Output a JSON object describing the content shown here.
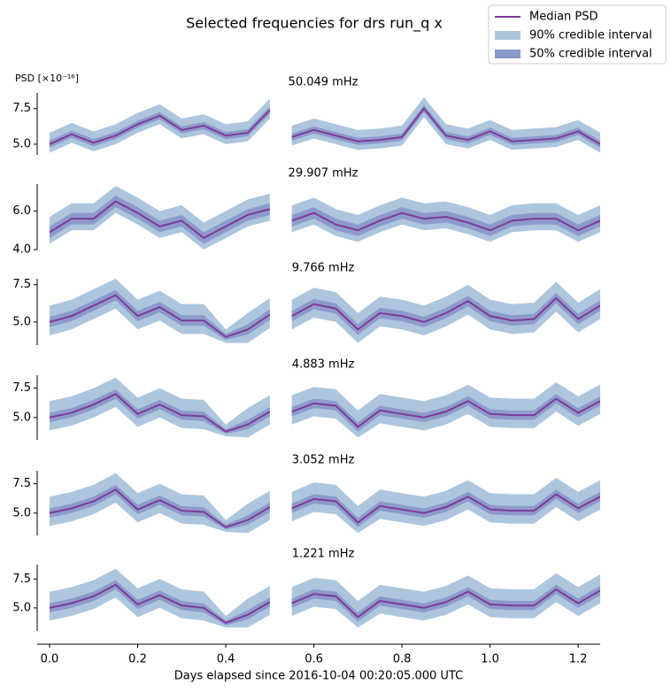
{
  "chart_data": {
    "type": "band-line",
    "title": "Selected frequencies for drs run_q x",
    "xlabel": "Days elapsed since 2016-10-04 00:20:05.000 UTC",
    "ylabel": "PSD [×10⁻¹⁶]",
    "legend": [
      {
        "name": "Median PSD",
        "color": "#7d3c98"
      },
      {
        "name": "90% credible interval",
        "color": "#adc6de"
      },
      {
        "name": "50% credible interval",
        "color": "#8d9acb"
      }
    ],
    "x": [
      0,
      0.05,
      0.1,
      0.15,
      0.2,
      0.25,
      0.3,
      0.35,
      0.4,
      0.45,
      0.5,
      0.525,
      0.55,
      0.6,
      0.65,
      0.7,
      0.75,
      0.8,
      0.85,
      0.9,
      0.95,
      1.0,
      1.05,
      1.1,
      1.15,
      1.2,
      1.25
    ],
    "xlim": [
      0,
      1.25
    ],
    "xticks": [
      {
        "value": 0,
        "label": "0.0"
      },
      0.2,
      0.4,
      0.6,
      0.8,
      {
        "value": 1,
        "label": "1.0"
      },
      1.2
    ],
    "panels": [
      {
        "subtitle": "50.049 mHz",
        "ylim": [
          4.25,
          8.6
        ],
        "yticks": [
          {
            "value": 5,
            "label": "5.0"
          },
          7.5
        ],
        "median": [
          5.0,
          5.7,
          5.1,
          5.6,
          6.4,
          7.0,
          6.0,
          6.3,
          5.6,
          5.8,
          7.4,
          null,
          5.5,
          6.0,
          5.6,
          5.2,
          5.3,
          5.5,
          7.5,
          5.6,
          5.3,
          5.9,
          5.2,
          5.3,
          5.4,
          5.9,
          5.0
        ],
        "lo90": [
          4.4,
          5.1,
          4.5,
          5.0,
          5.8,
          6.4,
          5.4,
          5.7,
          5.0,
          5.2,
          6.8,
          null,
          4.9,
          5.4,
          5.0,
          4.6,
          4.7,
          4.9,
          6.9,
          5.0,
          4.7,
          5.3,
          4.6,
          4.7,
          4.8,
          5.3,
          4.4
        ],
        "lo50": [
          4.75,
          5.45,
          4.85,
          5.35,
          6.15,
          6.75,
          5.75,
          6.05,
          5.35,
          5.55,
          7.15,
          null,
          5.25,
          5.75,
          5.35,
          4.95,
          5.05,
          5.25,
          7.25,
          5.35,
          5.05,
          5.65,
          4.95,
          5.05,
          5.15,
          5.65,
          4.75
        ],
        "hi50": [
          5.25,
          5.95,
          5.35,
          5.85,
          6.65,
          7.25,
          6.25,
          6.55,
          5.85,
          6.05,
          7.65,
          null,
          5.75,
          6.25,
          5.85,
          5.45,
          5.55,
          5.75,
          7.75,
          5.85,
          5.55,
          6.15,
          5.45,
          5.55,
          5.65,
          6.15,
          5.25
        ],
        "hi90": [
          5.8,
          6.5,
          5.9,
          6.4,
          7.2,
          7.8,
          6.8,
          7.1,
          6.4,
          6.6,
          8.2,
          null,
          6.3,
          6.8,
          6.4,
          6.0,
          6.1,
          6.3,
          8.3,
          6.4,
          6.1,
          6.7,
          6.0,
          6.1,
          6.2,
          6.7,
          5.8
        ]
      },
      {
        "subtitle": "29.907 mHz",
        "ylim": [
          4.0,
          7.4
        ],
        "yticks": [
          {
            "value": 4,
            "label": "4.0"
          },
          {
            "value": 6,
            "label": "6.0"
          }
        ],
        "median": [
          4.9,
          5.6,
          5.6,
          6.5,
          5.9,
          5.2,
          5.5,
          4.6,
          5.2,
          5.8,
          6.1,
          null,
          5.5,
          5.9,
          5.3,
          5.0,
          5.5,
          5.9,
          5.6,
          5.7,
          5.4,
          5.0,
          5.5,
          5.6,
          5.6,
          5.0,
          5.5
        ],
        "lo90": [
          4.3,
          5.0,
          5.0,
          5.9,
          5.3,
          4.6,
          4.9,
          4.0,
          4.6,
          5.2,
          5.5,
          null,
          4.9,
          5.3,
          4.7,
          4.4,
          4.9,
          5.3,
          5.0,
          5.1,
          4.8,
          4.4,
          4.9,
          5.0,
          5.0,
          4.4,
          4.9
        ],
        "lo50": [
          4.6,
          5.3,
          5.3,
          6.2,
          5.6,
          4.9,
          5.2,
          4.3,
          4.9,
          5.5,
          5.8,
          null,
          5.2,
          5.6,
          5.0,
          4.7,
          5.2,
          5.6,
          5.3,
          5.4,
          5.1,
          4.7,
          5.2,
          5.3,
          5.3,
          4.7,
          5.2
        ],
        "hi50": [
          5.2,
          5.9,
          5.9,
          6.8,
          6.2,
          5.5,
          5.8,
          4.9,
          5.5,
          6.1,
          6.4,
          null,
          5.8,
          6.2,
          5.6,
          5.3,
          5.8,
          6.2,
          5.9,
          6.0,
          5.7,
          5.3,
          5.8,
          5.9,
          5.9,
          5.3,
          5.8
        ],
        "hi90": [
          5.7,
          6.4,
          6.4,
          7.3,
          6.7,
          6.0,
          6.3,
          5.4,
          6.0,
          6.6,
          6.9,
          null,
          6.3,
          6.7,
          6.1,
          5.8,
          6.3,
          6.7,
          6.4,
          6.5,
          6.2,
          5.8,
          6.3,
          6.4,
          6.4,
          5.8,
          6.3
        ]
      },
      {
        "subtitle": "9.766 mHz",
        "ylim": [
          3.45,
          7.9
        ],
        "yticks": [
          {
            "value": 5,
            "label": "5.0"
          },
          7.5
        ],
        "median": [
          5.0,
          5.4,
          6.1,
          6.8,
          5.4,
          6.0,
          5.1,
          5.1,
          4.0,
          4.5,
          5.5,
          null,
          5.4,
          6.2,
          5.9,
          4.5,
          5.6,
          5.4,
          5.0,
          5.6,
          6.4,
          5.4,
          5.1,
          5.2,
          6.6,
          5.2,
          6.1
        ],
        "lo90": [
          4.1,
          4.5,
          5.2,
          5.9,
          4.5,
          5.1,
          4.2,
          4.2,
          3.6,
          3.6,
          4.6,
          null,
          4.5,
          5.3,
          5.0,
          3.6,
          4.7,
          4.5,
          4.1,
          4.7,
          5.5,
          4.5,
          4.2,
          4.3,
          5.7,
          4.3,
          5.2
        ],
        "lo50": [
          4.65,
          5.05,
          5.75,
          6.45,
          5.05,
          5.65,
          4.75,
          4.75,
          3.8,
          4.15,
          5.15,
          null,
          5.05,
          5.85,
          5.55,
          4.15,
          5.25,
          5.05,
          4.65,
          5.25,
          6.05,
          5.05,
          4.75,
          4.85,
          6.25,
          4.85,
          5.75
        ],
        "hi50": [
          5.35,
          5.75,
          6.45,
          7.15,
          5.75,
          6.35,
          5.45,
          5.45,
          4.2,
          4.85,
          5.85,
          null,
          5.75,
          6.55,
          6.25,
          4.85,
          5.95,
          5.75,
          5.35,
          5.95,
          6.75,
          5.75,
          5.45,
          5.55,
          6.95,
          5.55,
          6.45
        ],
        "hi90": [
          6.1,
          6.5,
          7.2,
          7.9,
          6.5,
          7.1,
          6.2,
          6.2,
          4.5,
          5.6,
          6.6,
          null,
          6.5,
          7.3,
          7.0,
          5.6,
          6.7,
          6.5,
          6.1,
          6.7,
          7.5,
          6.5,
          6.2,
          6.3,
          7.7,
          6.3,
          7.2
        ]
      },
      {
        "subtitle": "4.883 mHz",
        "ylim": [
          3.1,
          8.6
        ],
        "yticks": [
          {
            "value": 5,
            "label": "5.0"
          },
          7.5
        ],
        "median": [
          5.0,
          5.4,
          6.1,
          7.0,
          5.3,
          6.1,
          5.2,
          5.1,
          3.8,
          4.4,
          5.5,
          null,
          5.5,
          6.2,
          6.0,
          4.2,
          5.6,
          5.3,
          5.0,
          5.5,
          6.4,
          5.3,
          5.2,
          5.2,
          6.6,
          5.4,
          6.4
        ],
        "lo90": [
          3.9,
          4.3,
          5.0,
          5.9,
          4.2,
          5.0,
          4.1,
          4.0,
          3.4,
          3.3,
          4.4,
          null,
          4.4,
          5.1,
          4.9,
          3.3,
          4.5,
          4.2,
          3.9,
          4.4,
          5.3,
          4.2,
          4.1,
          4.1,
          5.5,
          4.3,
          5.3
        ],
        "lo50": [
          4.6,
          5.0,
          5.7,
          6.6,
          4.9,
          5.7,
          4.8,
          4.7,
          3.6,
          4.0,
          5.1,
          null,
          5.1,
          5.8,
          5.6,
          3.8,
          5.2,
          4.9,
          4.6,
          5.1,
          6.0,
          4.9,
          4.8,
          4.8,
          6.2,
          5.0,
          6.0
        ],
        "hi50": [
          5.4,
          5.8,
          6.5,
          7.4,
          5.7,
          6.5,
          5.6,
          5.5,
          4.0,
          4.8,
          5.9,
          null,
          5.9,
          6.6,
          6.4,
          4.6,
          6.0,
          5.7,
          5.4,
          5.9,
          6.8,
          5.7,
          5.6,
          5.6,
          7.0,
          5.8,
          6.8
        ],
        "hi90": [
          6.4,
          6.8,
          7.5,
          8.4,
          6.7,
          7.5,
          6.6,
          6.5,
          4.4,
          5.8,
          6.9,
          null,
          6.9,
          7.6,
          7.4,
          5.6,
          7.0,
          6.7,
          6.4,
          6.9,
          7.8,
          6.7,
          6.6,
          6.6,
          8.0,
          6.8,
          7.8
        ]
      },
      {
        "subtitle": "3.052 mHz",
        "ylim": [
          3.1,
          8.6
        ],
        "yticks": [
          {
            "value": 5,
            "label": "5.0"
          },
          7.5
        ],
        "median": [
          5.0,
          5.4,
          6.0,
          7.0,
          5.3,
          6.1,
          5.2,
          5.1,
          3.8,
          4.4,
          5.5,
          null,
          5.4,
          6.2,
          6.0,
          4.2,
          5.6,
          5.3,
          5.0,
          5.5,
          6.4,
          5.3,
          5.2,
          5.2,
          6.6,
          5.4,
          6.4
        ],
        "lo90": [
          3.9,
          4.3,
          4.9,
          5.9,
          4.2,
          5.0,
          4.1,
          4.0,
          3.4,
          3.3,
          4.4,
          null,
          4.3,
          5.1,
          4.9,
          3.3,
          4.5,
          4.2,
          3.9,
          4.4,
          5.3,
          4.2,
          4.1,
          4.1,
          5.5,
          4.3,
          5.3
        ],
        "lo50": [
          4.6,
          5.0,
          5.6,
          6.6,
          4.9,
          5.7,
          4.8,
          4.7,
          3.6,
          4.0,
          5.1,
          null,
          5.0,
          5.8,
          5.6,
          3.8,
          5.2,
          4.9,
          4.6,
          5.1,
          6.0,
          4.9,
          4.8,
          4.8,
          6.2,
          5.0,
          6.0
        ],
        "hi50": [
          5.4,
          5.8,
          6.4,
          7.4,
          5.7,
          6.5,
          5.6,
          5.5,
          4.0,
          4.8,
          5.9,
          null,
          5.8,
          6.6,
          6.4,
          4.6,
          6.0,
          5.7,
          5.4,
          5.9,
          6.8,
          5.7,
          5.6,
          5.6,
          7.0,
          5.8,
          6.8
        ],
        "hi90": [
          6.4,
          6.8,
          7.4,
          8.4,
          6.7,
          7.5,
          6.6,
          6.5,
          4.4,
          5.8,
          6.9,
          null,
          6.8,
          7.6,
          7.4,
          5.6,
          7.0,
          6.7,
          6.4,
          6.9,
          7.8,
          6.7,
          6.6,
          6.6,
          8.0,
          6.8,
          7.8
        ]
      },
      {
        "subtitle": "1.221 mHz",
        "ylim": [
          3.0,
          8.75
        ],
        "yticks": [
          {
            "value": 5,
            "label": "5.0"
          },
          7.5
        ],
        "median": [
          5.0,
          5.4,
          6.0,
          7.0,
          5.3,
          6.1,
          5.2,
          5.0,
          3.7,
          4.4,
          5.5,
          null,
          5.4,
          6.2,
          6.0,
          4.2,
          5.6,
          5.3,
          5.0,
          5.5,
          6.4,
          5.3,
          5.2,
          5.2,
          6.6,
          5.4,
          6.5
        ],
        "lo90": [
          3.9,
          4.3,
          4.9,
          5.9,
          4.2,
          5.0,
          4.1,
          3.9,
          3.3,
          3.3,
          4.4,
          null,
          4.3,
          5.1,
          4.9,
          3.3,
          4.5,
          4.2,
          3.9,
          4.4,
          5.3,
          4.2,
          4.1,
          4.1,
          5.5,
          4.3,
          5.4
        ],
        "lo50": [
          4.6,
          5.0,
          5.6,
          6.6,
          4.9,
          5.7,
          4.8,
          4.6,
          3.5,
          4.0,
          5.1,
          null,
          5.0,
          5.8,
          5.6,
          3.8,
          5.2,
          4.9,
          4.6,
          5.1,
          6.0,
          4.9,
          4.8,
          4.8,
          6.2,
          5.0,
          6.1
        ],
        "hi50": [
          5.4,
          5.8,
          6.4,
          7.4,
          5.7,
          6.5,
          5.6,
          5.4,
          3.9,
          4.8,
          5.9,
          null,
          5.8,
          6.6,
          6.4,
          4.6,
          6.0,
          5.7,
          5.4,
          5.9,
          6.8,
          5.7,
          5.6,
          5.6,
          7.0,
          5.8,
          6.9
        ],
        "hi90": [
          6.4,
          6.8,
          7.4,
          8.4,
          6.7,
          7.5,
          6.6,
          6.4,
          4.3,
          5.8,
          6.9,
          null,
          6.8,
          7.6,
          7.4,
          5.6,
          7.0,
          6.7,
          6.4,
          6.9,
          7.8,
          6.7,
          6.6,
          6.6,
          8.0,
          6.8,
          7.9
        ]
      }
    ]
  }
}
